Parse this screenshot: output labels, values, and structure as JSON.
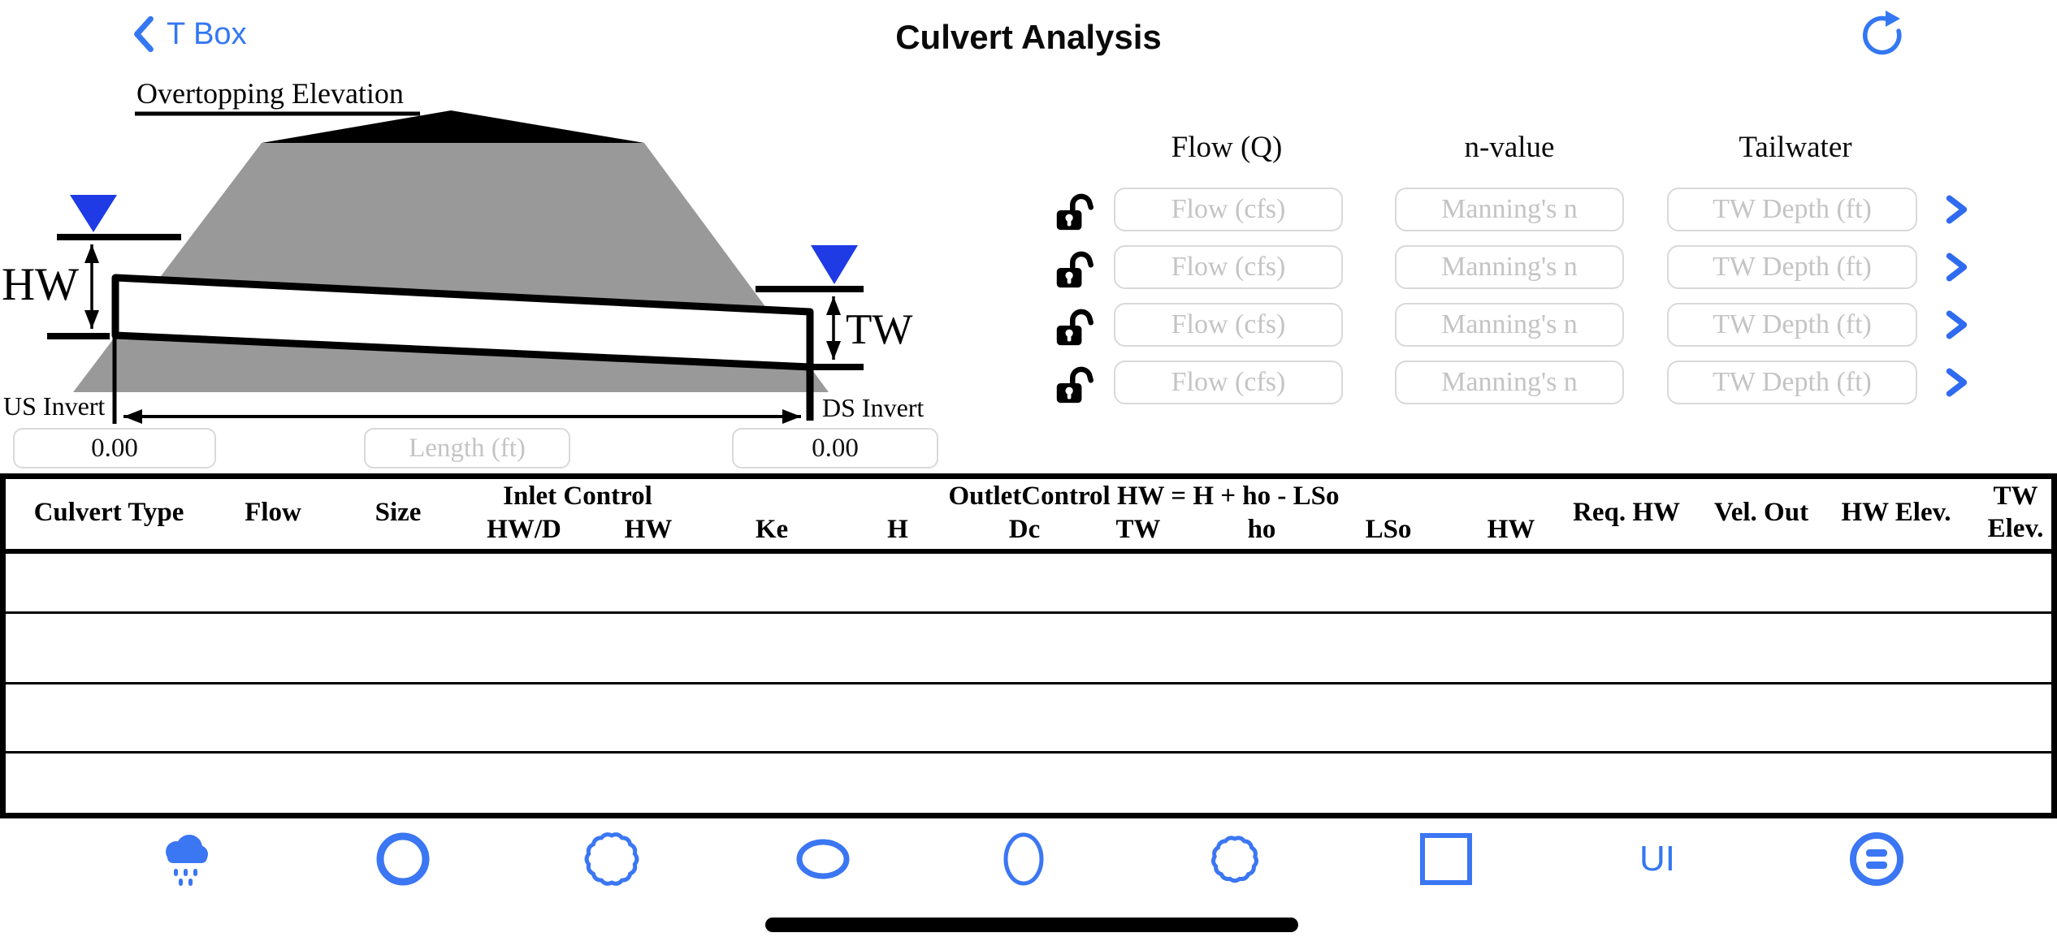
{
  "nav": {
    "back_label": "T Box",
    "title": "Culvert Analysis"
  },
  "diagram": {
    "overtopping_label": "Overtopping Elevation",
    "hw_label": "HW",
    "tw_label": "TW",
    "us_invert_label": "US Invert",
    "ds_invert_label": "DS Invert",
    "us_invert_value": "0.00",
    "ds_invert_value": "0.00",
    "length_placeholder": "Length (ft)"
  },
  "inputs_panel": {
    "col_flow": "Flow (Q)",
    "col_n": "n-value",
    "col_tailwater": "Tailwater",
    "flow_placeholder": "Flow (cfs)",
    "n_placeholder": "Manning's n",
    "tw_placeholder": "TW Depth (ft)",
    "row_count": 4
  },
  "table": {
    "col_culvert_type": "Culvert Type",
    "col_flow": "Flow",
    "col_size": "Size",
    "group_inlet": "Inlet Control",
    "col_hwd": "HW/D",
    "col_inlet_hw": "HW",
    "col_ke": "Ke",
    "group_outlet": "OutletControl HW = H + ho - LSo",
    "col_h": "H",
    "col_dc": "Dc",
    "col_tw": "TW",
    "col_ho": "ho",
    "col_lso": "LSo",
    "col_outlet_hw": "HW",
    "col_req_hw": "Req. HW",
    "col_vel_out": "Vel. Out",
    "col_hw_elev": "HW Elev.",
    "col_tw_elev_top": "TW",
    "col_tw_elev_bottom": "Elev.",
    "row_count": 4
  },
  "toolbar": {
    "ui_label": "UI"
  },
  "colors": {
    "accent_blue": "#3477f3",
    "water_blue": "#1e3be5",
    "embankment_gray": "#999999"
  }
}
